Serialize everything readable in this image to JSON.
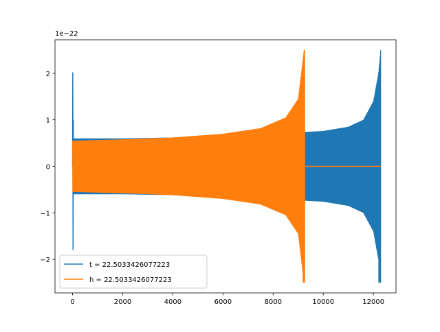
{
  "chart_data": {
    "type": "line",
    "title": "",
    "xlabel": "",
    "ylabel": "",
    "offset_text": "1e−22",
    "xlim": [
      -700,
      12900
    ],
    "ylim": [
      -2.72,
      2.72
    ],
    "xticks": [
      0,
      2000,
      4000,
      6000,
      8000,
      10000,
      12000
    ],
    "xtick_labels": [
      "0",
      "2000",
      "4000",
      "6000",
      "8000",
      "10000",
      "12000"
    ],
    "yticks": [
      -2,
      -1,
      0,
      1,
      2
    ],
    "ytick_labels": [
      "−2",
      "−1",
      "0",
      "1",
      "2"
    ],
    "grid": false,
    "legend_position": "lower-left",
    "series": [
      {
        "name": "t = 22.5033426077223",
        "color": "#1f77b4",
        "x_start": 0,
        "x_end": 12290,
        "envelope": [
          {
            "x": 0,
            "y": 0.0
          },
          {
            "x": 10,
            "y": 2.02
          },
          {
            "x": 30,
            "y": -1.8
          },
          {
            "x": 60,
            "y": 0.6
          },
          {
            "x": 2000,
            "y": 0.6
          },
          {
            "x": 4000,
            "y": 0.62
          },
          {
            "x": 6000,
            "y": 0.68
          },
          {
            "x": 8000,
            "y": 0.72
          },
          {
            "x": 9300,
            "y": 0.74
          },
          {
            "x": 10000,
            "y": 0.76
          },
          {
            "x": 11000,
            "y": 0.85
          },
          {
            "x": 11600,
            "y": 1.0
          },
          {
            "x": 12000,
            "y": 1.4
          },
          {
            "x": 12200,
            "y": 2.0
          },
          {
            "x": 12290,
            "y": 2.5
          }
        ],
        "min_peak": -2.5
      },
      {
        "name": "h = 22.5033426077223",
        "color": "#ff7f0e",
        "x_start": 0,
        "x_end": 12290,
        "envelope": [
          {
            "x": 0,
            "y": 0.55
          },
          {
            "x": 2000,
            "y": 0.58
          },
          {
            "x": 4000,
            "y": 0.62
          },
          {
            "x": 6000,
            "y": 0.7
          },
          {
            "x": 7500,
            "y": 0.82
          },
          {
            "x": 8500,
            "y": 1.05
          },
          {
            "x": 9000,
            "y": 1.45
          },
          {
            "x": 9230,
            "y": 2.5
          }
        ],
        "min_peak": -2.5,
        "flat_after": 9260,
        "flat_value": 0
      }
    ]
  }
}
